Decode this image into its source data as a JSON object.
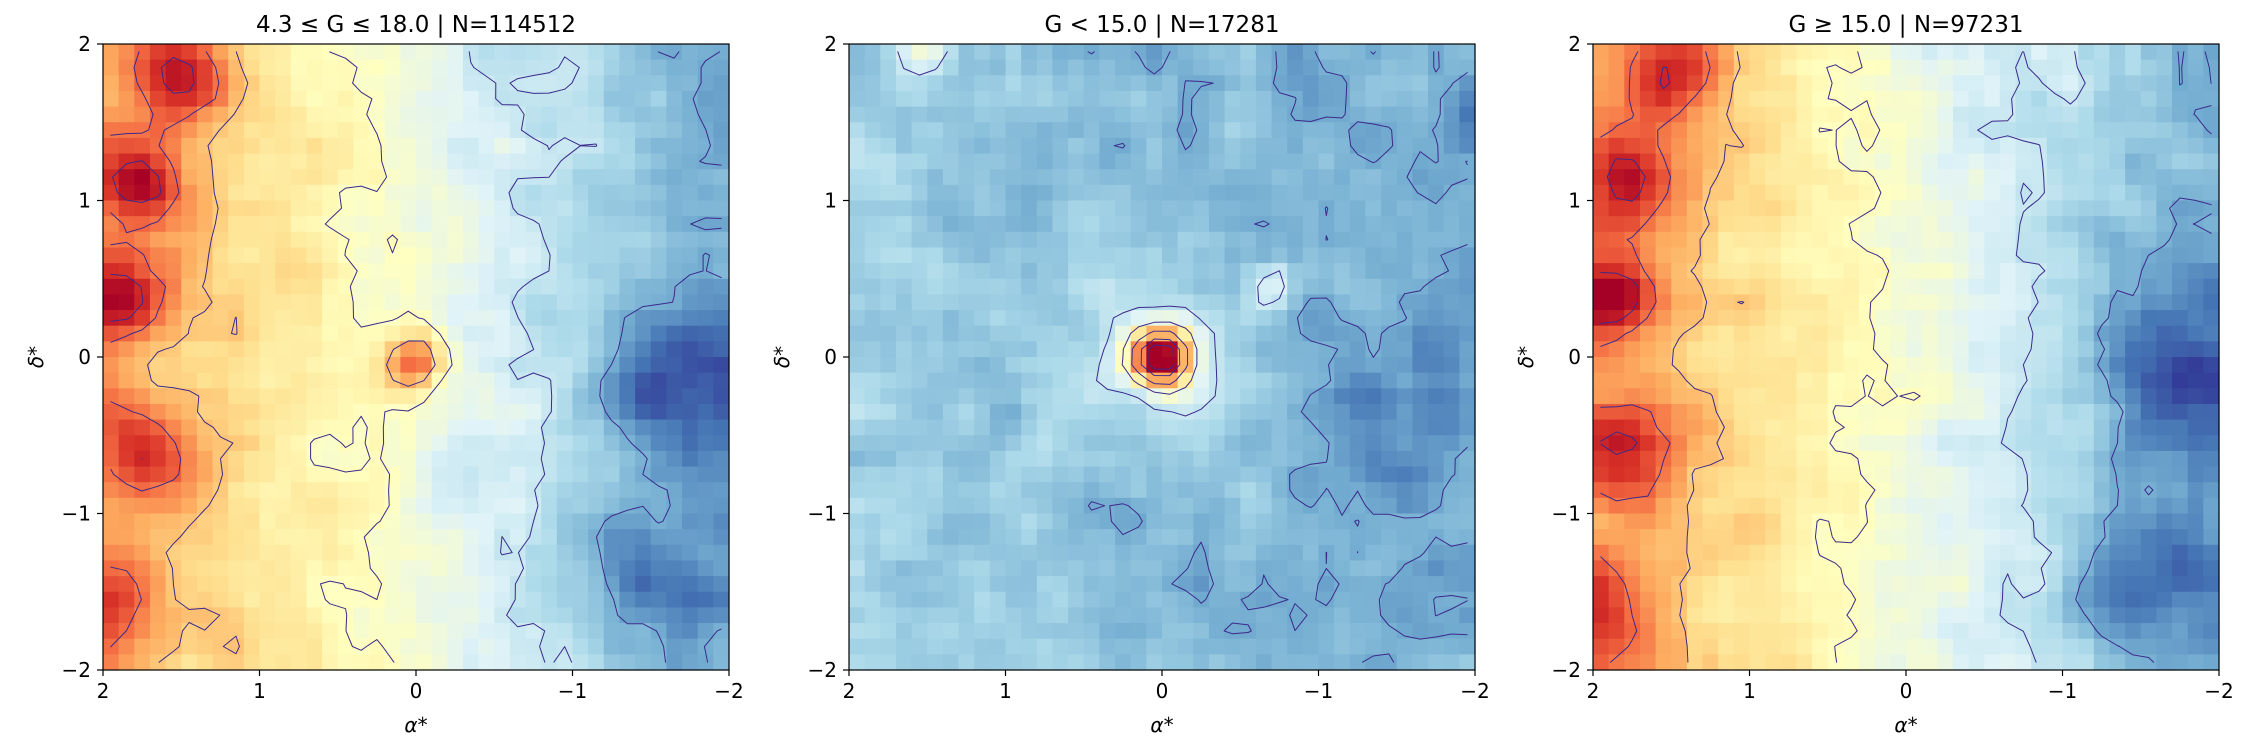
{
  "chart_data": [
    {
      "type": "heatmap",
      "title": "4.3 ≤ G ≤ 18.0  |  N=114512",
      "xlabel": "α*",
      "ylabel": "δ*",
      "xlim": [
        2,
        -2
      ],
      "ylim": [
        -2,
        2
      ],
      "xticks": [
        2,
        1,
        0,
        -1,
        -2
      ],
      "xtick_labels": [
        "2",
        "1",
        "0",
        "−1",
        "−2"
      ],
      "yticks": [
        -2,
        -1,
        0,
        1,
        2
      ],
      "ytick_labels": [
        "−2",
        "−1",
        "0",
        "1",
        "2"
      ],
      "colormap": "RdYlBu_r",
      "contours": true,
      "contour_color": "#3b2a8c",
      "grid_size": 40,
      "density": {
        "background": 0.32,
        "gradient": {
          "direction": "east-to-west",
          "strength": 0.52
        },
        "blobs": [
          {
            "x": 0.0,
            "y": -0.05,
            "amp": 0.35,
            "sigma": 0.14
          },
          {
            "x": 1.5,
            "y": 1.8,
            "amp": 0.3,
            "sigma": 0.22
          },
          {
            "x": 1.75,
            "y": 1.1,
            "amp": 0.26,
            "sigma": 0.2
          },
          {
            "x": 1.85,
            "y": 0.4,
            "amp": 0.28,
            "sigma": 0.2
          },
          {
            "x": 1.75,
            "y": -0.6,
            "amp": 0.25,
            "sigma": 0.22
          },
          {
            "x": 1.95,
            "y": -1.6,
            "amp": 0.2,
            "sigma": 0.2
          },
          {
            "x": -1.7,
            "y": -0.1,
            "amp": -0.2,
            "sigma": 0.35
          },
          {
            "x": -1.5,
            "y": -1.4,
            "amp": -0.16,
            "sigma": 0.3
          }
        ],
        "noise": 0.06,
        "seed": 11
      }
    },
    {
      "type": "heatmap",
      "title": "G < 15.0  |  N=17281",
      "xlabel": "α*",
      "ylabel": "δ*",
      "xlim": [
        2,
        -2
      ],
      "ylim": [
        -2,
        2
      ],
      "xticks": [
        2,
        1,
        0,
        -1,
        -2
      ],
      "xtick_labels": [
        "2",
        "1",
        "0",
        "−1",
        "−2"
      ],
      "yticks": [
        -2,
        -1,
        0,
        1,
        2
      ],
      "ytick_labels": [
        "−2",
        "−1",
        "0",
        "1",
        "2"
      ],
      "colormap": "RdYlBu_r",
      "contours": true,
      "contour_color": "#3b2a8c",
      "grid_size": 40,
      "density": {
        "background": 0.22,
        "gradient": {
          "direction": "east-to-west",
          "strength": 0.08
        },
        "blobs": [
          {
            "x": 0.0,
            "y": 0.0,
            "amp": 0.72,
            "sigma": 0.13
          },
          {
            "x": 0.0,
            "y": 0.0,
            "amp": 0.12,
            "sigma": 0.4
          },
          {
            "x": -0.7,
            "y": 0.45,
            "amp": 0.18,
            "sigma": 0.1
          },
          {
            "x": 1.5,
            "y": 2.0,
            "amp": 0.18,
            "sigma": 0.12
          },
          {
            "x": -1.6,
            "y": -0.3,
            "amp": -0.08,
            "sigma": 0.4
          }
        ],
        "noise": 0.06,
        "seed": 23
      }
    },
    {
      "type": "heatmap",
      "title": "G ≥ 15.0  |  N=97231",
      "xlabel": "α*",
      "ylabel": "δ*",
      "xlim": [
        2,
        -2
      ],
      "ylim": [
        -2,
        2
      ],
      "xticks": [
        2,
        1,
        0,
        -1,
        -2
      ],
      "xtick_labels": [
        "2",
        "1",
        "0",
        "−1",
        "−2"
      ],
      "yticks": [
        -2,
        -1,
        0,
        1,
        2
      ],
      "ytick_labels": [
        "−2",
        "−1",
        "0",
        "1",
        "2"
      ],
      "colormap": "RdYlBu_r",
      "contours": true,
      "contour_color": "#3b2a8c",
      "grid_size": 40,
      "density": {
        "background": 0.32,
        "gradient": {
          "direction": "east-to-west",
          "strength": 0.55
        },
        "blobs": [
          {
            "x": 1.5,
            "y": 1.85,
            "amp": 0.3,
            "sigma": 0.22
          },
          {
            "x": 1.75,
            "y": 1.15,
            "amp": 0.3,
            "sigma": 0.2
          },
          {
            "x": 1.9,
            "y": 0.4,
            "amp": 0.3,
            "sigma": 0.2
          },
          {
            "x": 1.75,
            "y": -0.6,
            "amp": 0.24,
            "sigma": 0.22
          },
          {
            "x": 1.95,
            "y": -1.6,
            "amp": 0.22,
            "sigma": 0.2
          },
          {
            "x": -1.7,
            "y": -0.1,
            "amp": -0.2,
            "sigma": 0.35
          },
          {
            "x": -1.5,
            "y": -1.4,
            "amp": -0.16,
            "sigma": 0.3
          }
        ],
        "noise": 0.06,
        "seed": 37
      }
    }
  ]
}
